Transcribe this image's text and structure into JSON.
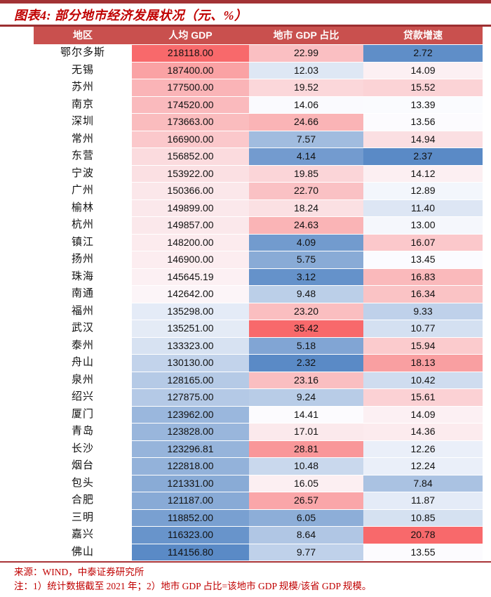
{
  "header": {
    "title": "图表4:  部分地市经济发展状况（元、%）"
  },
  "footer": {
    "source": "来源：WIND，中泰证券研究所",
    "note": "注：1）统计数据截至 2021 年；2）地市 GDP 占比=该地市 GDP 规模/该省 GDP 规模。"
  },
  "colors": {
    "top_bar": "#a23335",
    "title_red": "#c00000",
    "rule_red": "#9c2f31",
    "header_bg": "#c9504e",
    "header_text": "#ffffff",
    "bottom_rule": "#a93437"
  },
  "chart_data": {
    "type": "table",
    "title": "图表4: 部分地市经济发展状况（元、%）",
    "columns": [
      "地区",
      "人均 GDP",
      "地市 GDP 占比",
      "贷款增速"
    ],
    "rows": [
      [
        "鄂尔多斯",
        "218118.00",
        "22.99",
        "2.72"
      ],
      [
        "无锡",
        "187400.00",
        "12.03",
        "14.09"
      ],
      [
        "苏州",
        "177500.00",
        "19.52",
        "15.52"
      ],
      [
        "南京",
        "174520.00",
        "14.06",
        "13.39"
      ],
      [
        "深圳",
        "173663.00",
        "24.66",
        "13.56"
      ],
      [
        "常州",
        "166900.00",
        "7.57",
        "14.94"
      ],
      [
        "东营",
        "156852.00",
        "4.14",
        "2.37"
      ],
      [
        "宁波",
        "153922.00",
        "19.85",
        "14.12"
      ],
      [
        "广州",
        "150366.00",
        "22.70",
        "12.89"
      ],
      [
        "榆林",
        "149899.00",
        "18.24",
        "11.40"
      ],
      [
        "杭州",
        "149857.00",
        "24.63",
        "13.00"
      ],
      [
        "镇江",
        "148200.00",
        "4.09",
        "16.07"
      ],
      [
        "扬州",
        "146900.00",
        "5.75",
        "13.45"
      ],
      [
        "珠海",
        "145645.19",
        "3.12",
        "16.83"
      ],
      [
        "南通",
        "142642.00",
        "9.48",
        "16.34"
      ],
      [
        "福州",
        "135298.00",
        "23.20",
        "9.33"
      ],
      [
        "武汉",
        "135251.00",
        "35.42",
        "10.77"
      ],
      [
        "泰州",
        "133323.00",
        "5.18",
        "15.94"
      ],
      [
        "舟山",
        "130130.00",
        "2.32",
        "18.13"
      ],
      [
        "泉州",
        "128165.00",
        "23.16",
        "10.42"
      ],
      [
        "绍兴",
        "127875.00",
        "9.24",
        "15.61"
      ],
      [
        "厦门",
        "123962.00",
        "14.41",
        "14.09"
      ],
      [
        "青岛",
        "123828.00",
        "17.01",
        "14.36"
      ],
      [
        "长沙",
        "123296.81",
        "28.81",
        "12.26"
      ],
      [
        "烟台",
        "122818.00",
        "10.48",
        "12.24"
      ],
      [
        "包头",
        "121331.00",
        "16.05",
        "7.84"
      ],
      [
        "合肥",
        "121187.00",
        "26.57",
        "11.87"
      ],
      [
        "三明",
        "118852.00",
        "6.05",
        "10.85"
      ],
      [
        "嘉兴",
        "116323.00",
        "8.64",
        "20.78"
      ],
      [
        "佛山",
        "114156.80",
        "9.77",
        "13.55"
      ]
    ],
    "heatmap": {
      "scope": "per-column",
      "midpoint": "median",
      "low": "#5a8ac6",
      "mid": "#fcfcff",
      "high": "#f8696b"
    },
    "layout": {
      "grid": false,
      "row_separator": "1px white",
      "value_columns_unit": "人均GDP: 元; 占比/增速: %"
    }
  }
}
